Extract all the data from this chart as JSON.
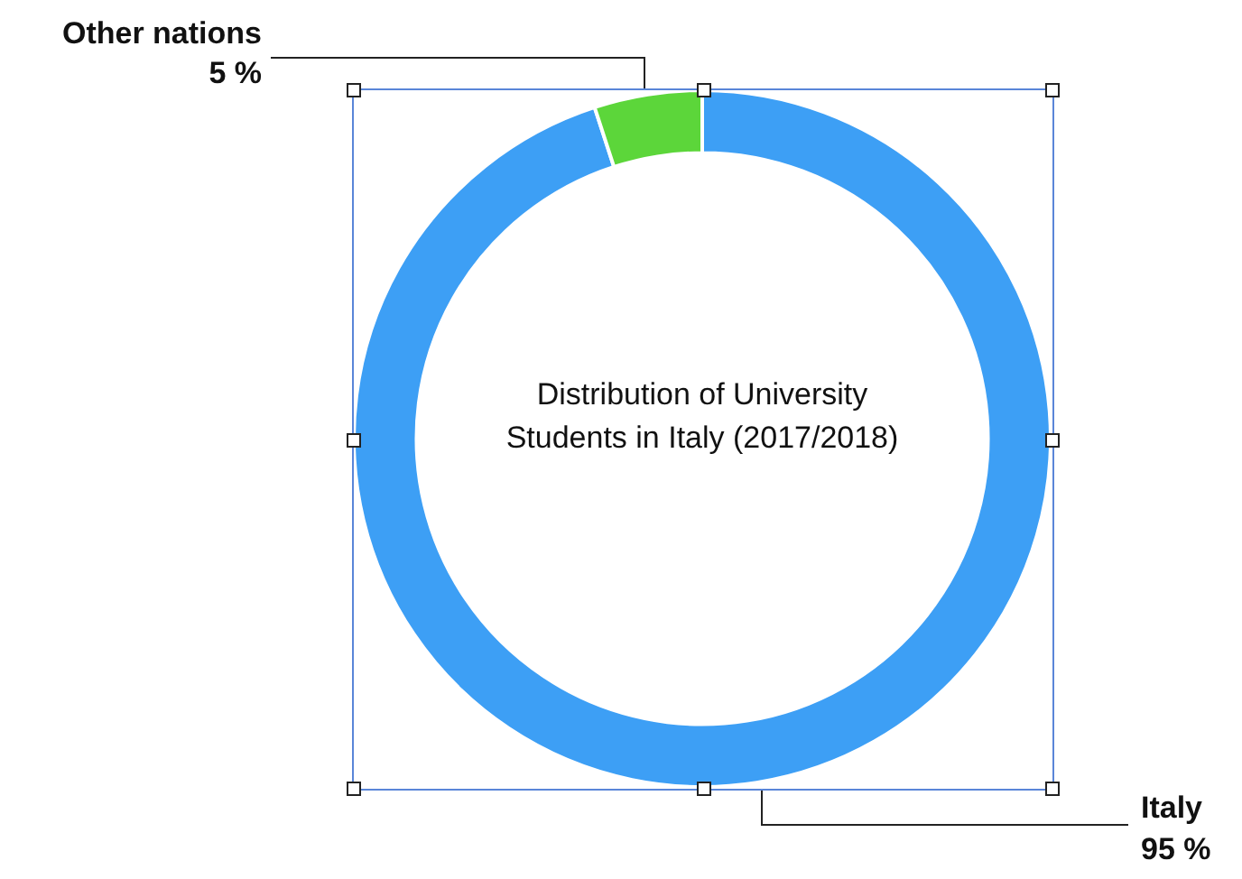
{
  "chart_data": {
    "type": "donut",
    "title": "Distribution of University Students in Italy (2017/2018)",
    "categories": [
      "Italy",
      "Other nations"
    ],
    "values": [
      95,
      5
    ],
    "colors": [
      "#3d9ff5",
      "#5cd63a"
    ],
    "value_labels": [
      "95 %",
      "5 %"
    ],
    "legend": false
  }
}
